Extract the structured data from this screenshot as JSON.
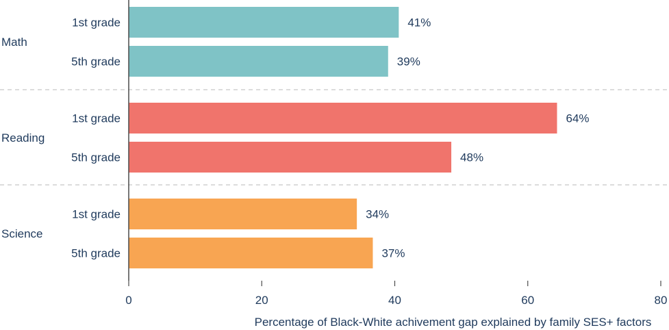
{
  "chart_data": {
    "type": "bar",
    "orientation": "horizontal",
    "title": "",
    "xlabel": "Percentage of Black-White achivement gap explained by family SES+ factors",
    "ylabel": "",
    "xlim": [
      0,
      80
    ],
    "xticks": [
      0,
      20,
      40,
      60,
      80
    ],
    "xtick_labels": [
      "0",
      "20",
      "40",
      "60",
      "80"
    ],
    "grid": false,
    "groups": [
      {
        "name": "Math",
        "color": "#7fc3c6",
        "bars": [
          {
            "category": "1st grade",
            "value": 40.6,
            "label": "41%"
          },
          {
            "category": "5th grade",
            "value": 39.0,
            "label": "39%"
          }
        ]
      },
      {
        "name": "Reading",
        "color": "#f0746c",
        "bars": [
          {
            "category": "1st grade",
            "value": 64.4,
            "label": "64%"
          },
          {
            "category": "5th grade",
            "value": 48.5,
            "label": "48%"
          }
        ]
      },
      {
        "name": "Science",
        "color": "#f8a552",
        "bars": [
          {
            "category": "1st grade",
            "value": 34.3,
            "label": "34%"
          },
          {
            "category": "5th grade",
            "value": 36.7,
            "label": "37%"
          }
        ]
      }
    ],
    "colors": {
      "text": "#1f3a5c",
      "axis": "#4a4a4a",
      "separator": "#c8c8c8"
    }
  }
}
